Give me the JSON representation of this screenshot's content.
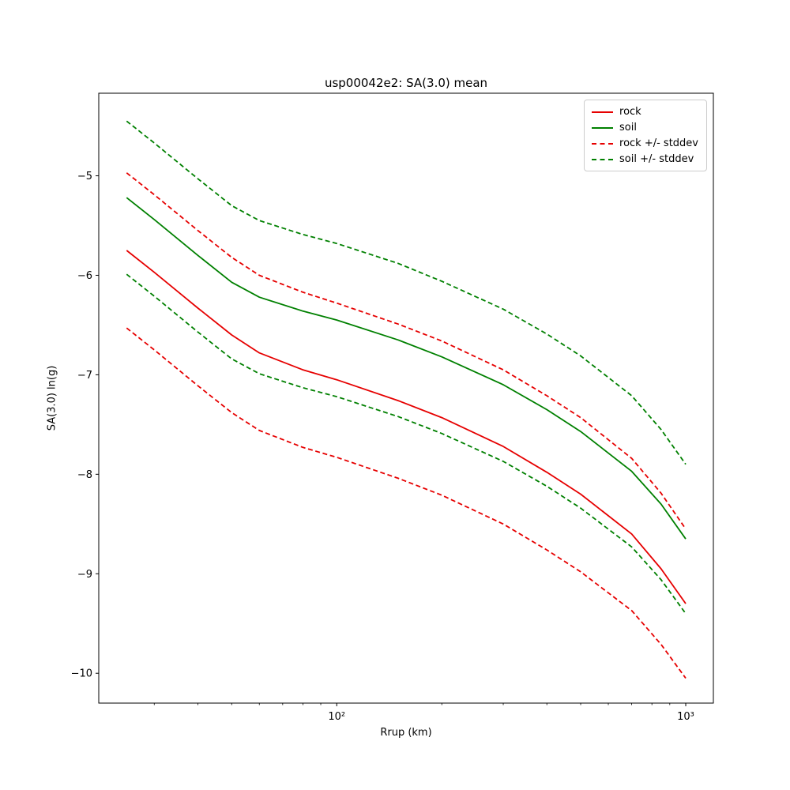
{
  "chart_data": {
    "type": "line",
    "title": "usp00042e2: SA(3.0) mean",
    "xlabel": "Rrup (km)",
    "ylabel": "SA(3.0) ln(g)",
    "xscale": "log",
    "xlim": [
      20.8,
      1200
    ],
    "ylim": [
      -10.3,
      -4.17
    ],
    "grid": false,
    "legend_position": "upper right",
    "yticks": [
      {
        "value": -5,
        "label": "−5"
      },
      {
        "value": -6,
        "label": "−6"
      },
      {
        "value": -7,
        "label": "−7"
      },
      {
        "value": -8,
        "label": "−8"
      },
      {
        "value": -9,
        "label": "−9"
      },
      {
        "value": -10,
        "label": "−10"
      }
    ],
    "xticks_major": [
      {
        "value": 100,
        "label": "10²"
      },
      {
        "value": 1000,
        "label": "10³"
      }
    ],
    "xticks_minor": [
      30,
      40,
      50,
      60,
      70,
      80,
      90,
      200,
      300,
      400,
      500,
      600,
      700,
      800,
      900
    ],
    "x": [
      25,
      30,
      40,
      50,
      60,
      80,
      100,
      150,
      200,
      300,
      400,
      500,
      700,
      850,
      1000
    ],
    "series": [
      {
        "name": "rock",
        "color": "#e60000",
        "dash": false,
        "lines": [
          [
            -5.75,
            -5.97,
            -6.33,
            -6.6,
            -6.78,
            -6.95,
            -7.05,
            -7.26,
            -7.43,
            -7.72,
            -7.98,
            -8.2,
            -8.6,
            -8.95,
            -9.3
          ]
        ]
      },
      {
        "name": "soil",
        "color": "#008000",
        "dash": false,
        "lines": [
          [
            -5.22,
            -5.44,
            -5.8,
            -6.07,
            -6.22,
            -6.36,
            -6.45,
            -6.65,
            -6.82,
            -7.1,
            -7.35,
            -7.57,
            -7.97,
            -8.3,
            -8.65
          ]
        ]
      },
      {
        "name": "rock +/- stddev",
        "color": "#e60000",
        "dash": true,
        "lines": [
          [
            -4.97,
            -5.19,
            -5.55,
            -5.82,
            -6.0,
            -6.17,
            -6.28,
            -6.49,
            -6.66,
            -6.95,
            -7.21,
            -7.43,
            -7.84,
            -8.19,
            -8.55
          ],
          [
            -6.53,
            -6.75,
            -7.11,
            -7.38,
            -7.56,
            -7.73,
            -7.83,
            -8.04,
            -8.21,
            -8.5,
            -8.76,
            -8.98,
            -9.37,
            -9.71,
            -10.05
          ]
        ]
      },
      {
        "name": "soil +/- stddev",
        "color": "#008000",
        "dash": true,
        "lines": [
          [
            -4.45,
            -4.67,
            -5.03,
            -5.3,
            -5.45,
            -5.59,
            -5.68,
            -5.88,
            -6.06,
            -6.34,
            -6.59,
            -6.81,
            -7.21,
            -7.55,
            -7.9
          ],
          [
            -5.99,
            -6.21,
            -6.57,
            -6.84,
            -6.99,
            -7.13,
            -7.22,
            -7.42,
            -7.59,
            -7.87,
            -8.12,
            -8.34,
            -8.73,
            -9.06,
            -9.4
          ]
        ]
      }
    ]
  }
}
